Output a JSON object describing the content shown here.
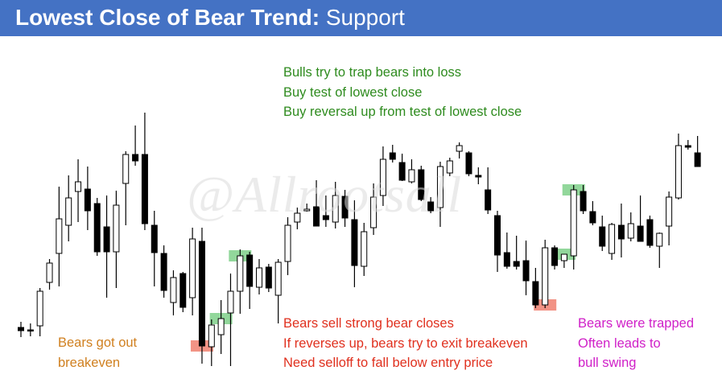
{
  "title": {
    "bold": "Lowest Close of Bear Trend:",
    "regular": "Support"
  },
  "colors": {
    "header_bg": "#4472c4",
    "green_text": "#2e8b1e",
    "red_text": "#e0301e",
    "orange_text": "#d08020",
    "magenta_text": "#d020c8",
    "highlight_red": "#f08070",
    "highlight_green": "#7fd089"
  },
  "annotations": {
    "bulls": {
      "line1": "Bulls try to trap bears into loss",
      "line2": "Buy test of lowest close",
      "line3": "Buy reversal up from test of lowest close"
    },
    "bears_out": {
      "line1": "Bears got out",
      "line2": "breakeven"
    },
    "bears_sell": {
      "line1": "Bears sell strong bear closes",
      "line2": "If reverses up, bears try to exit breakeven",
      "line3": "Need selloff to fall below entry price"
    },
    "trapped": {
      "line1": "Bears were trapped",
      "line2": "Often leads to",
      "line3": "bull swing"
    }
  },
  "watermark": "@Allrootsall",
  "chart_data": {
    "type": "candlestick",
    "price_scale": "unlabeled",
    "bars": [
      {
        "o": 407,
        "h": 400,
        "l": 419,
        "c": 411
      },
      {
        "o": 410,
        "h": 402,
        "l": 418,
        "c": 410
      },
      {
        "o": 405,
        "h": 358,
        "l": 418,
        "c": 362
      },
      {
        "o": 351,
        "h": 322,
        "l": 360,
        "c": 327
      },
      {
        "o": 315,
        "h": 232,
        "l": 356,
        "c": 272
      },
      {
        "o": 280,
        "h": 218,
        "l": 300,
        "c": 246
      },
      {
        "o": 238,
        "h": 198,
        "l": 276,
        "c": 226
      },
      {
        "o": 235,
        "h": 207,
        "l": 286,
        "c": 262
      },
      {
        "o": 253,
        "h": 246,
        "l": 318,
        "c": 313
      },
      {
        "o": 282,
        "h": 243,
        "l": 370,
        "c": 313
      },
      {
        "o": 313,
        "h": 237,
        "l": 358,
        "c": 255
      },
      {
        "o": 228,
        "h": 188,
        "l": 280,
        "c": 192
      },
      {
        "o": 192,
        "h": 156,
        "l": 206,
        "c": 200
      },
      {
        "o": 192,
        "h": 140,
        "l": 286,
        "c": 278
      },
      {
        "o": 280,
        "h": 262,
        "l": 356,
        "c": 314
      },
      {
        "o": 315,
        "h": 305,
        "l": 370,
        "c": 361
      },
      {
        "o": 376,
        "h": 336,
        "l": 392,
        "c": 345
      },
      {
        "o": 340,
        "h": 338,
        "l": 388,
        "c": 382
      },
      {
        "o": 370,
        "h": 283,
        "l": 392,
        "c": 297
      },
      {
        "o": 300,
        "h": 283,
        "l": 452,
        "c": 430
      },
      {
        "o": 431,
        "h": 397,
        "l": 455,
        "c": 404
      },
      {
        "o": 416,
        "h": 373,
        "l": 440,
        "c": 396
      },
      {
        "o": 389,
        "h": 340,
        "l": 455,
        "c": 362
      },
      {
        "o": 362,
        "h": 310,
        "l": 390,
        "c": 318
      },
      {
        "o": 317,
        "h": 313,
        "l": 384,
        "c": 356
      },
      {
        "o": 357,
        "h": 322,
        "l": 366,
        "c": 333
      },
      {
        "o": 332,
        "h": 328,
        "l": 363,
        "c": 358
      },
      {
        "o": 367,
        "h": 322,
        "l": 402,
        "c": 326
      },
      {
        "o": 325,
        "h": 270,
        "l": 342,
        "c": 280
      },
      {
        "o": 276,
        "h": 258,
        "l": 285,
        "c": 265
      },
      {
        "o": 262,
        "h": 253,
        "l": 263,
        "c": 260
      },
      {
        "o": 257,
        "h": 224,
        "l": 280,
        "c": 281
      },
      {
        "o": 268,
        "h": 243,
        "l": 282,
        "c": 273
      },
      {
        "o": 276,
        "h": 226,
        "l": 284,
        "c": 243
      },
      {
        "o": 244,
        "h": 236,
        "l": 282,
        "c": 271
      },
      {
        "o": 273,
        "h": 249,
        "l": 357,
        "c": 330
      },
      {
        "o": 331,
        "h": 277,
        "l": 343,
        "c": 288
      },
      {
        "o": 283,
        "h": 228,
        "l": 292,
        "c": 245
      },
      {
        "o": 243,
        "h": 182,
        "l": 256,
        "c": 198
      },
      {
        "o": 190,
        "h": 180,
        "l": 202,
        "c": 198
      },
      {
        "o": 202,
        "h": 191,
        "l": 225,
        "c": 224
      },
      {
        "o": 226,
        "h": 198,
        "l": 228,
        "c": 211
      },
      {
        "o": 211,
        "h": 206,
        "l": 250,
        "c": 248
      },
      {
        "o": 251,
        "h": 245,
        "l": 265,
        "c": 262
      },
      {
        "o": 258,
        "h": 201,
        "l": 282,
        "c": 207
      },
      {
        "o": 215,
        "h": 196,
        "l": 219,
        "c": 200
      },
      {
        "o": 188,
        "h": 177,
        "l": 197,
        "c": 181
      },
      {
        "o": 190,
        "h": 188,
        "l": 219,
        "c": 216
      },
      {
        "o": 218,
        "h": 208,
        "l": 229,
        "c": 220
      },
      {
        "o": 236,
        "h": 208,
        "l": 266,
        "c": 261
      },
      {
        "o": 268,
        "h": 262,
        "l": 338,
        "c": 317
      },
      {
        "o": 314,
        "h": 289,
        "l": 334,
        "c": 331
      },
      {
        "o": 325,
        "h": 293,
        "l": 335,
        "c": 331
      },
      {
        "o": 324,
        "h": 299,
        "l": 367,
        "c": 349
      },
      {
        "o": 350,
        "h": 333,
        "l": 383,
        "c": 379
      },
      {
        "o": 379,
        "h": 298,
        "l": 383,
        "c": 308
      },
      {
        "o": 308,
        "h": 305,
        "l": 335,
        "c": 330
      },
      {
        "o": 324,
        "h": 318,
        "l": 333,
        "c": 316
      },
      {
        "o": 318,
        "h": 230,
        "l": 335,
        "c": 236
      },
      {
        "o": 238,
        "h": 230,
        "l": 266,
        "c": 262
      },
      {
        "o": 263,
        "h": 250,
        "l": 280,
        "c": 277
      },
      {
        "o": 282,
        "h": 268,
        "l": 312,
        "c": 306
      },
      {
        "o": 315,
        "h": 277,
        "l": 323,
        "c": 279
      },
      {
        "o": 280,
        "h": 253,
        "l": 320,
        "c": 297
      },
      {
        "o": 296,
        "h": 264,
        "l": 300,
        "c": 278
      },
      {
        "o": 281,
        "h": 243,
        "l": 296,
        "c": 300
      },
      {
        "o": 273,
        "h": 268,
        "l": 308,
        "c": 305
      },
      {
        "o": 306,
        "h": 289,
        "l": 333,
        "c": 290
      },
      {
        "o": 281,
        "h": 238,
        "l": 305,
        "c": 245
      },
      {
        "o": 246,
        "h": 166,
        "l": 248,
        "c": 181
      },
      {
        "o": 181,
        "h": 174,
        "l": 186,
        "c": 183
      },
      {
        "o": 190,
        "h": 169,
        "l": 205,
        "c": 207
      }
    ],
    "highlights": [
      {
        "color": "red",
        "bar": 19
      },
      {
        "color": "green",
        "bar": 21
      },
      {
        "color": "green",
        "bar": 23
      },
      {
        "color": "red",
        "bar": 55
      },
      {
        "color": "green",
        "bar": 57
      },
      {
        "color": "green",
        "bar": 58
      }
    ]
  }
}
